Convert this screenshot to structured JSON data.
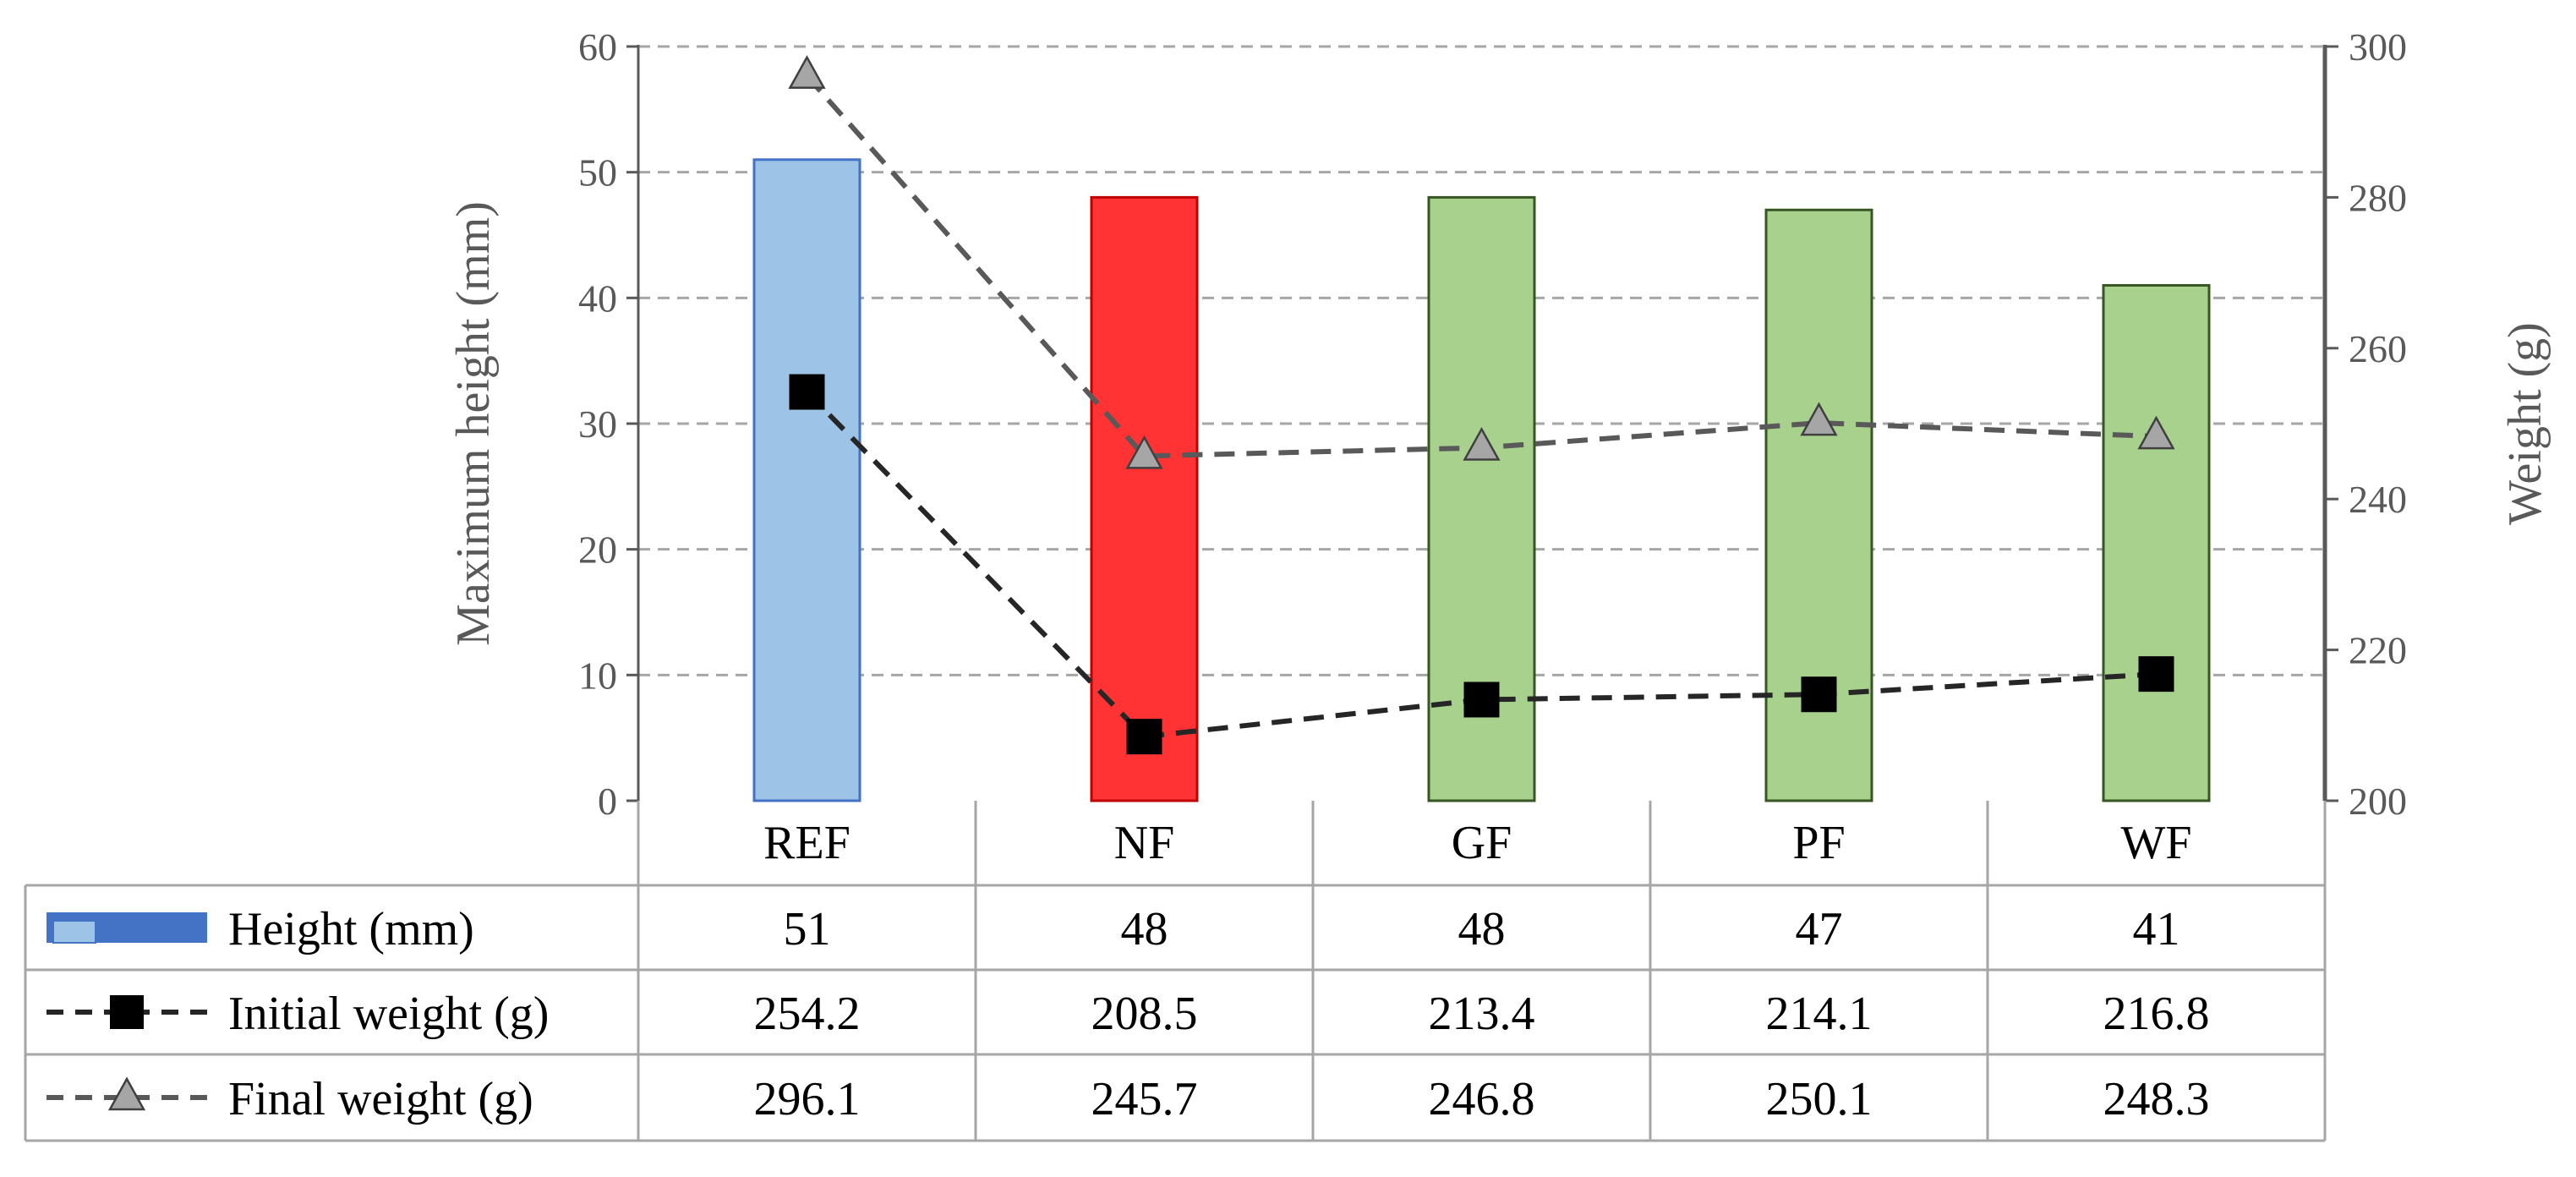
{
  "chart_data": {
    "type": "bar",
    "categories": [
      "REF",
      "NF",
      "GF",
      "PF",
      "WF"
    ],
    "y_left": {
      "label": "Maximum height (mm)",
      "min": 0,
      "max": 60,
      "ticks": [
        "0",
        "10",
        "20",
        "30",
        "40",
        "50",
        "60"
      ]
    },
    "y_right": {
      "label": "Weight (g)",
      "min": 200,
      "max": 300,
      "ticks": [
        "200",
        "220",
        "240",
        "260",
        "280",
        "300"
      ]
    },
    "grid": true,
    "series": [
      {
        "name": "Height (mm)",
        "type": "bar",
        "axis": "left",
        "values": [
          51,
          48,
          48,
          47,
          41
        ],
        "colors": [
          "#9DC3E6",
          "#FF3333",
          "#A9D18E",
          "#A9D18E",
          "#A9D18E"
        ],
        "stroke_colors": [
          "#4472C4",
          "#C00000",
          "#375623",
          "#375623",
          "#375623"
        ],
        "legend_color": "#4472C4"
      },
      {
        "name": "Initial weight (g)",
        "type": "line",
        "axis": "right",
        "dashed": true,
        "marker": "square",
        "line_color": "#262626",
        "marker_color": "#000000",
        "values": [
          254.2,
          208.5,
          213.4,
          214.1,
          216.8
        ]
      },
      {
        "name": "Final weight (g)",
        "type": "line",
        "axis": "right",
        "dashed": true,
        "marker": "triangle",
        "line_color": "#595959",
        "marker_color": "#A6A6A6",
        "values": [
          296.1,
          245.7,
          246.8,
          250.1,
          248.3
        ]
      }
    ],
    "table": {
      "rows": [
        [
          "51",
          "48",
          "48",
          "47",
          "41"
        ],
        [
          "254.2",
          "208.5",
          "213.4",
          "214.1",
          "216.8"
        ],
        [
          "296.1",
          "245.7",
          "246.8",
          "250.1",
          "248.3"
        ]
      ]
    }
  }
}
